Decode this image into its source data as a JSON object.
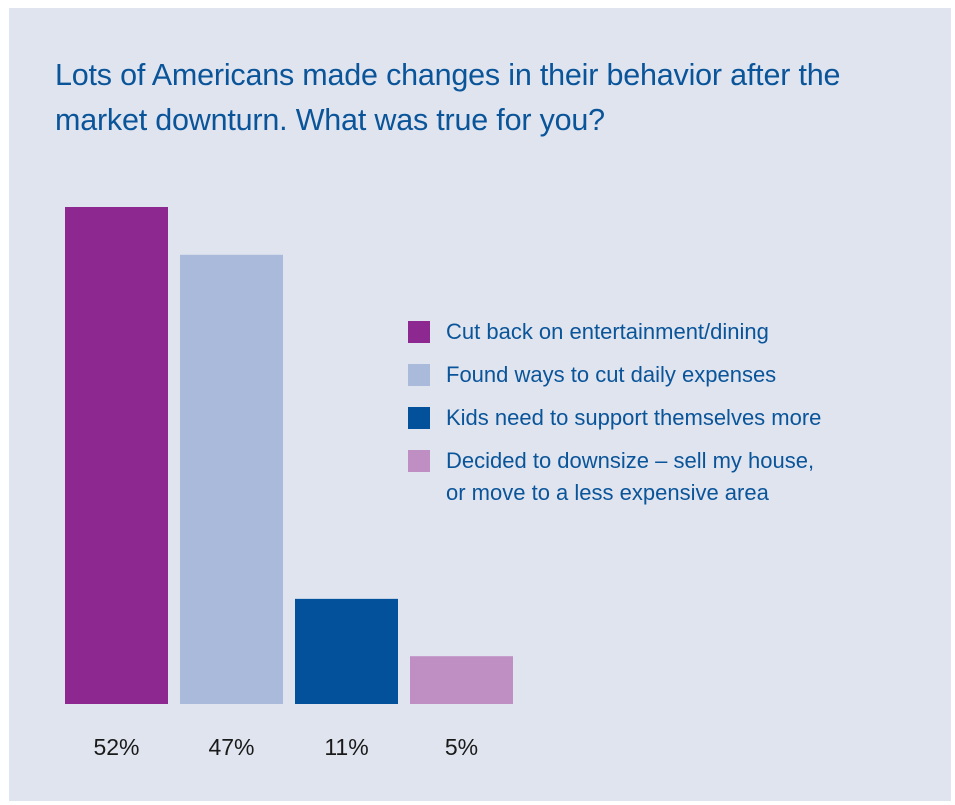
{
  "chart_data": {
    "type": "bar",
    "title": "Lots of Americans made changes in their behavior after the market downturn. What was true for you?",
    "categories": [
      "Cut back on entertainment/dining",
      "Found ways to cut daily expenses",
      "Kids need to support themselves more",
      "Decided to downsize – sell my house,\nor move to a less expensive area"
    ],
    "values": [
      52,
      47,
      11,
      5
    ],
    "value_labels": [
      "52%",
      "47%",
      "11%",
      "5%"
    ],
    "colors": [
      "#8c288f",
      "#aabadb",
      "#03519b",
      "#bf8ec3"
    ],
    "ylim": [
      0,
      52
    ],
    "grid": false,
    "legend_position": "right"
  }
}
